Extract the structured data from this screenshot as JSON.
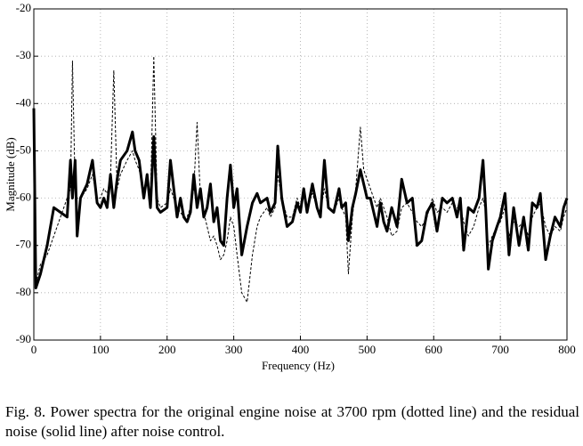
{
  "chart_data": {
    "type": "line",
    "x_label": "Frequency (Hz)",
    "y_label": "Magnitude (dB)",
    "x": [
      0,
      3,
      10,
      20,
      30,
      40,
      50,
      55,
      58,
      62,
      65,
      70,
      80,
      88,
      95,
      100,
      105,
      110,
      115,
      120,
      125,
      130,
      140,
      148,
      152,
      158,
      165,
      170,
      175,
      180,
      185,
      190,
      200,
      205,
      210,
      215,
      220,
      225,
      230,
      235,
      240,
      245,
      250,
      255,
      260,
      265,
      270,
      275,
      280,
      285,
      290,
      295,
      300,
      305,
      312,
      320,
      328,
      335,
      340,
      350,
      355,
      362,
      366,
      372,
      380,
      388,
      395,
      400,
      405,
      410,
      418,
      425,
      430,
      436,
      442,
      450,
      458,
      462,
      468,
      472,
      478,
      483,
      490,
      495,
      500,
      505,
      515,
      520,
      525,
      530,
      537,
      545,
      552,
      560,
      568,
      575,
      582,
      590,
      598,
      605,
      613,
      620,
      628,
      635,
      640,
      645,
      652,
      660,
      668,
      674,
      678,
      682,
      688,
      695,
      700,
      707,
      713,
      720,
      728,
      735,
      742,
      748,
      755,
      760,
      768,
      775,
      782,
      790,
      795,
      800
    ],
    "series": [
      {
        "color": "#000000",
        "line_style": "dotted",
        "width": 1,
        "values": [
          -45,
          -78,
          -74,
          -72,
          -68,
          -64,
          -60,
          -58,
          -31,
          -58,
          -60,
          -60,
          -58,
          -55,
          -60,
          -60,
          -58,
          -59,
          -56,
          -33,
          -58,
          -55,
          -52,
          -50,
          -52,
          -54,
          -58,
          -57,
          -60,
          -30,
          -60,
          -62,
          -61,
          -58,
          -60,
          -62,
          -63,
          -64,
          -64,
          -62,
          -58,
          -44,
          -60,
          -63,
          -66,
          -69,
          -68,
          -70,
          -73,
          -72,
          -69,
          -64,
          -66,
          -72,
          -80,
          -82,
          -72,
          -66,
          -64,
          -62,
          -64,
          -62,
          -55,
          -60,
          -64,
          -64,
          -60,
          -62,
          -59,
          -62,
          -59,
          -62,
          -63,
          -58,
          -62,
          -63,
          -60,
          -62,
          -64,
          -76,
          -64,
          -58,
          -45,
          -54,
          -56,
          -58,
          -62,
          -60,
          -62,
          -64,
          -68,
          -67,
          -62,
          -61,
          -63,
          -65,
          -66,
          -64,
          -60,
          -63,
          -62,
          -63,
          -61,
          -62,
          -62,
          -65,
          -68,
          -66,
          -62,
          -60,
          -63,
          -70,
          -68,
          -66,
          -65,
          -62,
          -68,
          -65,
          -66,
          -65,
          -68,
          -64,
          -62,
          -61,
          -66,
          -68,
          -66,
          -67,
          -64,
          -62
        ]
      },
      {
        "color": "#000000",
        "line_style": "solid",
        "width": 3,
        "values": [
          -41,
          -79,
          -76,
          -70,
          -62,
          -63,
          -64,
          -52,
          -60,
          -52,
          -68,
          -60,
          -57,
          -52,
          -61,
          -62,
          -60,
          -62,
          -55,
          -62,
          -56,
          -52,
          -50,
          -46,
          -50,
          -52,
          -60,
          -55,
          -62,
          -47,
          -62,
          -63,
          -62,
          -52,
          -58,
          -64,
          -60,
          -64,
          -65,
          -63,
          -55,
          -62,
          -58,
          -64,
          -62,
          -57,
          -65,
          -62,
          -69,
          -70,
          -60,
          -53,
          -62,
          -58,
          -72,
          -66,
          -61,
          -59,
          -61,
          -60,
          -63,
          -61,
          -49,
          -60,
          -66,
          -65,
          -61,
          -63,
          -58,
          -63,
          -57,
          -62,
          -64,
          -52,
          -62,
          -63,
          -58,
          -62,
          -61,
          -69,
          -62,
          -59,
          -54,
          -57,
          -60,
          -60,
          -66,
          -61,
          -65,
          -67,
          -62,
          -66,
          -56,
          -61,
          -60,
          -70,
          -69,
          -63,
          -61,
          -67,
          -60,
          -61,
          -60,
          -64,
          -60,
          -71,
          -62,
          -63,
          -60,
          -52,
          -62,
          -75,
          -69,
          -66,
          -64,
          -59,
          -72,
          -62,
          -70,
          -64,
          -71,
          -61,
          -62,
          -59,
          -73,
          -68,
          -64,
          -66,
          -62,
          -60
        ]
      }
    ],
    "xlim": [
      0,
      800
    ],
    "xticks": [
      0,
      100,
      200,
      300,
      400,
      500,
      600,
      700,
      800
    ],
    "ylim": [
      -90,
      -20
    ],
    "yticks": [
      -90,
      -80,
      -70,
      -60,
      -50,
      -40,
      -30,
      -20
    ],
    "grid": true
  },
  "caption": "Fig. 8.   Power spectra for the original engine noise at 3700 rpm (dotted line) and the residual noise (solid line) after noise control."
}
